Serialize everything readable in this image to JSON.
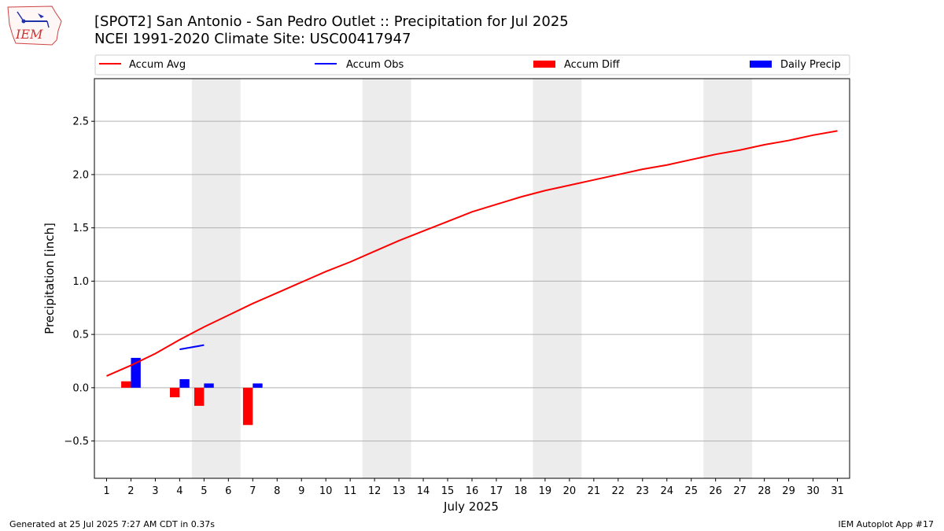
{
  "header": {
    "title_line1": "[SPOT2] San Antonio - San Pedro Outlet :: Precipitation for Jul 2025",
    "title_line2": "NCEI 1991-2020 Climate Site: USC00417947"
  },
  "logo": {
    "text": "IEM"
  },
  "footer": {
    "generated": "Generated at 25 Jul 2025 7:27 AM CDT in 0.37s",
    "app": "IEM Autoplot App #17"
  },
  "colors": {
    "avg": "#ff0000",
    "obs": "#0000ff",
    "diff": "#ff0000",
    "daily": "#0000ff",
    "weekend_band": "#ececec",
    "grid": "#b0b0b0"
  },
  "chart_data": {
    "type": "bar",
    "xlabel": "July 2025",
    "ylabel": "Precipitation [inch]",
    "ylim": [
      -0.85,
      2.9
    ],
    "xlim": [
      0.5,
      31.5
    ],
    "yticks": [
      -0.5,
      0.0,
      0.5,
      1.0,
      1.5,
      2.0,
      2.5
    ],
    "ytick_labels": [
      "−0.5",
      "0.0",
      "0.5",
      "1.0",
      "1.5",
      "2.0",
      "2.5"
    ],
    "xticks": [
      "1",
      "2",
      "3",
      "4",
      "5",
      "6",
      "7",
      "8",
      "9",
      "10",
      "11",
      "12",
      "13",
      "14",
      "15",
      "16",
      "17",
      "18",
      "19",
      "20",
      "21",
      "22",
      "23",
      "24",
      "25",
      "26",
      "27",
      "28",
      "29",
      "30",
      "31"
    ],
    "grid": "horizontal",
    "legend_position": "top",
    "weekend_bands": [
      [
        5,
        6
      ],
      [
        12,
        13
      ],
      [
        19,
        20
      ],
      [
        26,
        27
      ]
    ],
    "series": [
      {
        "name": "Accum Avg",
        "kind": "line",
        "x": [
          1,
          2,
          3,
          4,
          5,
          6,
          7,
          8,
          9,
          10,
          11,
          12,
          13,
          14,
          15,
          16,
          17,
          18,
          19,
          20,
          21,
          22,
          23,
          24,
          25,
          26,
          27,
          28,
          29,
          30,
          31
        ],
        "values": [
          0.11,
          0.21,
          0.32,
          0.45,
          0.57,
          0.68,
          0.79,
          0.89,
          0.99,
          1.09,
          1.18,
          1.28,
          1.38,
          1.47,
          1.56,
          1.65,
          1.72,
          1.79,
          1.85,
          1.9,
          1.95,
          2.0,
          2.05,
          2.09,
          2.14,
          2.19,
          2.23,
          2.28,
          2.32,
          2.37,
          2.41
        ]
      },
      {
        "name": "Accum Obs",
        "kind": "line",
        "x": [
          4,
          5
        ],
        "values": [
          0.36,
          0.4
        ]
      },
      {
        "name": "Accum Diff",
        "kind": "bar",
        "x": [
          2,
          4,
          5,
          7
        ],
        "values": [
          0.06,
          -0.09,
          -0.17,
          -0.35
        ]
      },
      {
        "name": "Daily Precip",
        "kind": "bar",
        "x": [
          2,
          4,
          5,
          7
        ],
        "values": [
          0.28,
          0.08,
          0.04,
          0.04
        ]
      }
    ]
  }
}
